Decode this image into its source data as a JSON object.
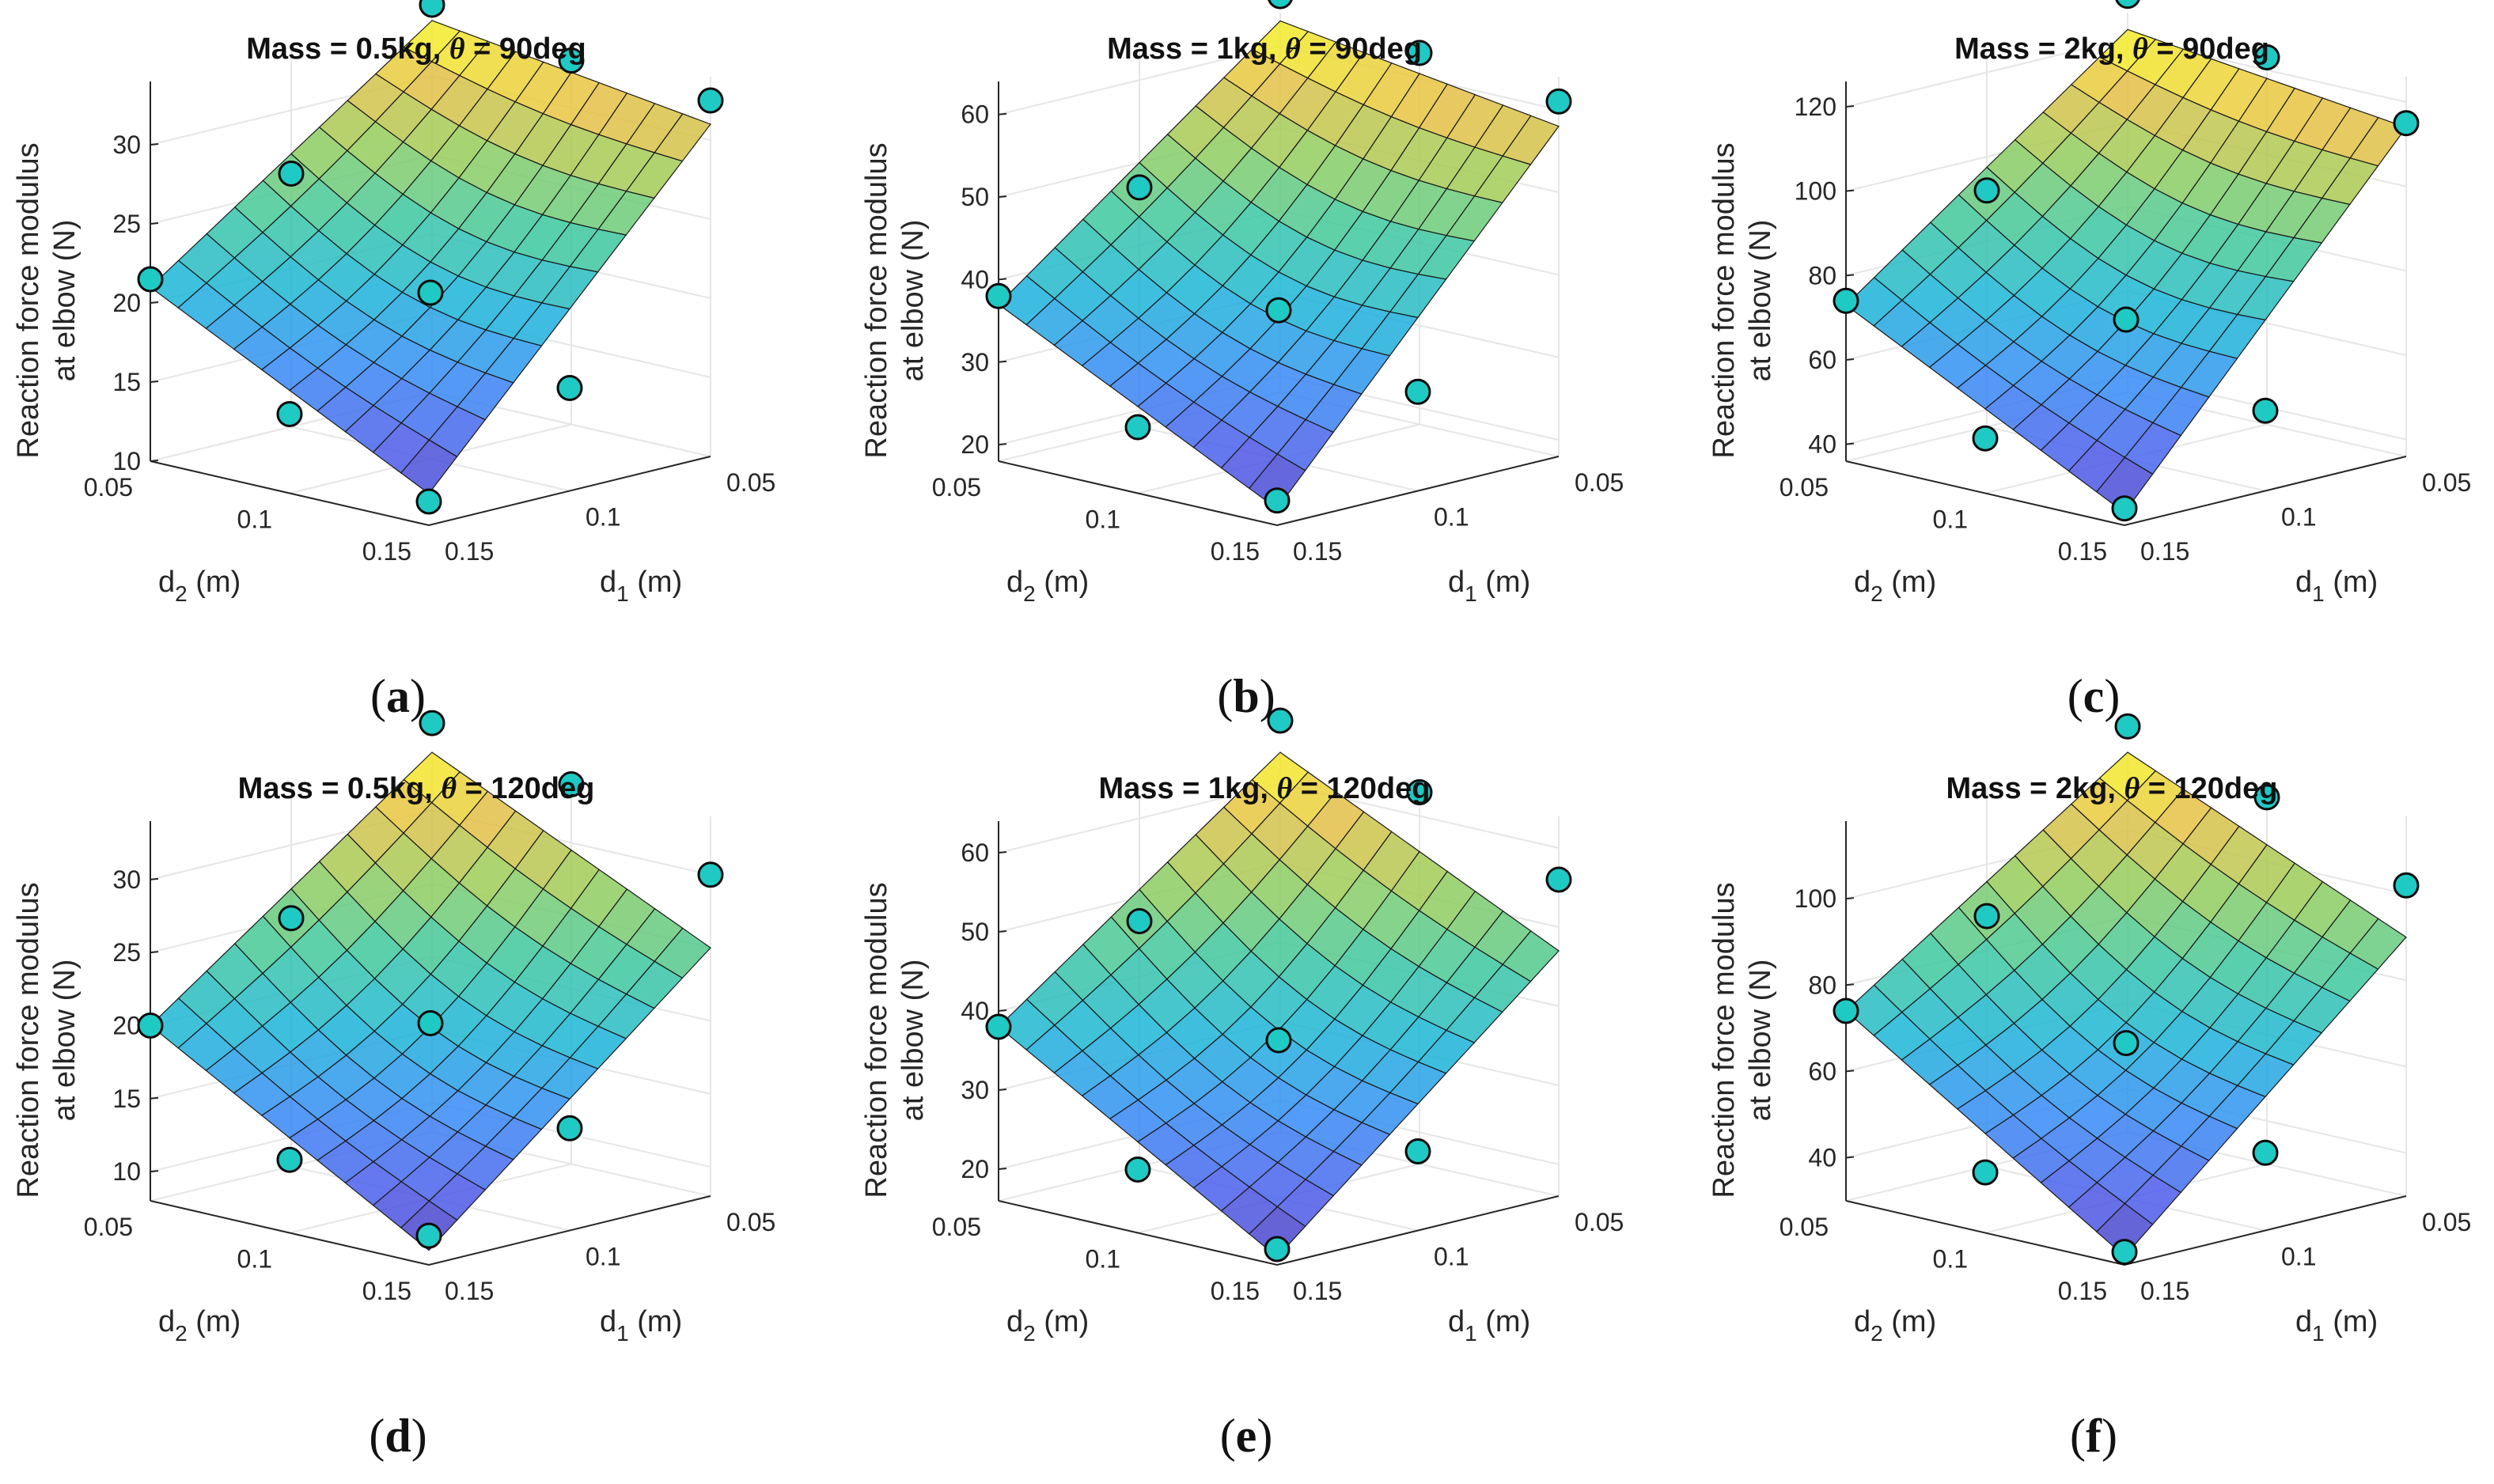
{
  "figure": {
    "y_axis_label_line1": "Reaction force modulus",
    "y_axis_label_line2": "at elbow (N)",
    "x_axis_d2_label": "d",
    "x_axis_d2_sub": "2",
    "x_axis_d1_label": "d",
    "x_axis_d1_sub": "1",
    "axis_unit": " (m)",
    "d_tick_labels": [
      "0.05",
      "0.1",
      "0.15"
    ],
    "colors": {
      "surface_low": "#4a3bd1",
      "surface_mid": "#21b5c4",
      "surface_high": "#f8f21b",
      "marker": "#1fc9c4"
    }
  },
  "chart_data": [
    {
      "type": "surface3d",
      "caption": "a",
      "title_prefix": "Mass = 0.5kg,  ",
      "title_theta": "θ",
      "title_suffix": " = 90deg",
      "xlabel": "d1 (m)",
      "ylabel": "d2 (m)",
      "zlabel": "Reaction force modulus at elbow (N)",
      "d_range": [
        0.05,
        0.15
      ],
      "zlim": [
        10,
        34
      ],
      "z_ticks": [
        10,
        15,
        20,
        25,
        30
      ],
      "surface_corners": {
        "d1min_d2min": 33.5,
        "d1min_d2max": 31,
        "d1max_d2min": 21,
        "d1max_d2max": 12
      },
      "points": [
        {
          "d1": 0.05,
          "d2": 0.05,
          "f": 34.5
        },
        {
          "d1": 0.05,
          "d2": 0.1,
          "f": 33
        },
        {
          "d1": 0.05,
          "d2": 0.15,
          "f": 32.5
        },
        {
          "d1": 0.1,
          "d2": 0.05,
          "f": 26
        },
        {
          "d1": 0.1,
          "d2": 0.1,
          "f": 20.5
        },
        {
          "d1": 0.1,
          "d2": 0.15,
          "f": 16.5
        },
        {
          "d1": 0.15,
          "d2": 0.05,
          "f": 21.5
        },
        {
          "d1": 0.15,
          "d2": 0.1,
          "f": 15
        },
        {
          "d1": 0.15,
          "d2": 0.15,
          "f": 11.5
        }
      ]
    },
    {
      "type": "surface3d",
      "caption": "b",
      "title_prefix": "Mass = 1kg,  ",
      "title_theta": "θ",
      "title_suffix": " = 90deg",
      "xlabel": "d1 (m)",
      "ylabel": "d2 (m)",
      "zlabel": "Reaction force modulus at elbow (N)",
      "d_range": [
        0.05,
        0.15
      ],
      "zlim": [
        18,
        64
      ],
      "z_ticks": [
        20,
        30,
        40,
        50,
        60
      ],
      "surface_corners": {
        "d1min_d2min": 63,
        "d1min_d2max": 58,
        "d1max_d2min": 37,
        "d1max_d2max": 20
      },
      "points": [
        {
          "d1": 0.05,
          "d2": 0.05,
          "f": 66
        },
        {
          "d1": 0.05,
          "d2": 0.1,
          "f": 63
        },
        {
          "d1": 0.05,
          "d2": 0.15,
          "f": 61
        },
        {
          "d1": 0.1,
          "d2": 0.05,
          "f": 47
        },
        {
          "d1": 0.1,
          "d2": 0.1,
          "f": 36
        },
        {
          "d1": 0.1,
          "d2": 0.15,
          "f": 30
        }
      ],
      "points_extra": [
        {
          "d1": 0.15,
          "d2": 0.05,
          "f": 38
        },
        {
          "d1": 0.15,
          "d2": 0.1,
          "f": 26
        },
        {
          "d1": 0.15,
          "d2": 0.15,
          "f": 21
        }
      ]
    },
    {
      "type": "surface3d",
      "caption": "c",
      "title_prefix": "Mass = 2kg,  ",
      "title_theta": "θ",
      "title_suffix": " = 90deg",
      "xlabel": "d1 (m)",
      "ylabel": "d2 (m)",
      "zlabel": "Reaction force modulus at elbow (N)",
      "d_range": [
        0.05,
        0.15
      ],
      "zlim": [
        36,
        126
      ],
      "z_ticks": [
        40,
        60,
        80,
        100,
        120
      ],
      "surface_corners": {
        "d1min_d2min": 122,
        "d1min_d2max": 114,
        "d1max_d2min": 73,
        "d1max_d2max": 39
      },
      "points": [
        {
          "d1": 0.05,
          "d2": 0.05,
          "f": 130
        },
        {
          "d1": 0.05,
          "d2": 0.1,
          "f": 123
        },
        {
          "d1": 0.05,
          "d2": 0.15,
          "f": 115
        },
        {
          "d1": 0.1,
          "d2": 0.05,
          "f": 92
        },
        {
          "d1": 0.1,
          "d2": 0.1,
          "f": 69
        },
        {
          "d1": 0.1,
          "d2": 0.15,
          "f": 55
        },
        {
          "d1": 0.15,
          "d2": 0.05,
          "f": 74
        },
        {
          "d1": 0.15,
          "d2": 0.1,
          "f": 49
        },
        {
          "d1": 0.15,
          "d2": 0.15,
          "f": 40
        }
      ]
    },
    {
      "type": "surface3d",
      "caption": "d",
      "title_prefix": "Mass = 0.5kg,  ",
      "title_theta": "θ",
      "title_suffix": " = 120deg",
      "xlabel": "d1 (m)",
      "ylabel": "d2 (m)",
      "zlabel": "Reaction force modulus at elbow (N)",
      "d_range": [
        0.05,
        0.15
      ],
      "zlim": [
        8,
        34
      ],
      "z_ticks": [
        10,
        15,
        20,
        25,
        30
      ],
      "surface_corners": {
        "d1min_d2min": 34,
        "d1min_d2max": 25,
        "d1max_d2min": 20,
        "d1max_d2max": 9
      },
      "points": [
        {
          "d1": 0.05,
          "d2": 0.05,
          "f": 36
        },
        {
          "d1": 0.05,
          "d2": 0.1,
          "f": 34
        },
        {
          "d1": 0.05,
          "d2": 0.15,
          "f": 30
        },
        {
          "d1": 0.1,
          "d2": 0.05,
          "f": 25
        },
        {
          "d1": 0.1,
          "d2": 0.1,
          "f": 20
        },
        {
          "d1": 0.1,
          "d2": 0.15,
          "f": 15
        },
        {
          "d1": 0.15,
          "d2": 0.05,
          "f": 20
        },
        {
          "d1": 0.15,
          "d2": 0.1,
          "f": 13
        },
        {
          "d1": 0.15,
          "d2": 0.15,
          "f": 10
        }
      ]
    },
    {
      "type": "surface3d",
      "caption": "e",
      "title_prefix": "Mass = 1kg,  ",
      "title_theta": "θ",
      "title_suffix": " = 120deg",
      "xlabel": "d1 (m)",
      "ylabel": "d2 (m)",
      "zlabel": "Reaction force modulus at elbow (N)",
      "d_range": [
        0.05,
        0.15
      ],
      "zlim": [
        16,
        64
      ],
      "z_ticks": [
        20,
        30,
        40,
        50,
        60
      ],
      "surface_corners": {
        "d1min_d2min": 64,
        "d1min_d2max": 47,
        "d1max_d2min": 38,
        "d1max_d2max": 17
      },
      "points": [
        {
          "d1": 0.05,
          "d2": 0.05,
          "f": 68
        },
        {
          "d1": 0.05,
          "d2": 0.1,
          "f": 63
        },
        {
          "d1": 0.05,
          "d2": 0.15,
          "f": 56
        },
        {
          "d1": 0.1,
          "d2": 0.05,
          "f": 47
        },
        {
          "d1": 0.1,
          "d2": 0.1,
          "f": 36
        },
        {
          "d1": 0.1,
          "d2": 0.15,
          "f": 26
        },
        {
          "d1": 0.15,
          "d2": 0.05,
          "f": 38
        },
        {
          "d1": 0.15,
          "d2": 0.1,
          "f": 24
        },
        {
          "d1": 0.15,
          "d2": 0.15,
          "f": 18
        }
      ]
    },
    {
      "type": "surface3d",
      "caption": "f",
      "title_prefix": "Mass = 2kg,  ",
      "title_theta": "θ",
      "title_suffix": " = 120deg",
      "xlabel": "d1 (m)",
      "ylabel": "d2 (m)",
      "zlabel": "Reaction force modulus at elbow (N)",
      "d_range": [
        0.05,
        0.15
      ],
      "zlim": [
        30,
        118
      ],
      "z_ticks": [
        40,
        60,
        80,
        100
      ],
      "surface_corners": {
        "d1min_d2min": 118,
        "d1min_d2max": 90,
        "d1max_d2min": 74,
        "d1max_d2max": 32
      },
      "points": [
        {
          "d1": 0.05,
          "d2": 0.05,
          "f": 124
        },
        {
          "d1": 0.05,
          "d2": 0.1,
          "f": 115
        },
        {
          "d1": 0.05,
          "d2": 0.15,
          "f": 102
        },
        {
          "d1": 0.1,
          "d2": 0.05,
          "f": 88
        },
        {
          "d1": 0.1,
          "d2": 0.1,
          "f": 66
        },
        {
          "d1": 0.1,
          "d2": 0.15,
          "f": 48
        },
        {
          "d1": 0.15,
          "d2": 0.05,
          "f": 74
        },
        {
          "d1": 0.15,
          "d2": 0.1,
          "f": 44
        },
        {
          "d1": 0.15,
          "d2": 0.15,
          "f": 33
        }
      ]
    }
  ]
}
